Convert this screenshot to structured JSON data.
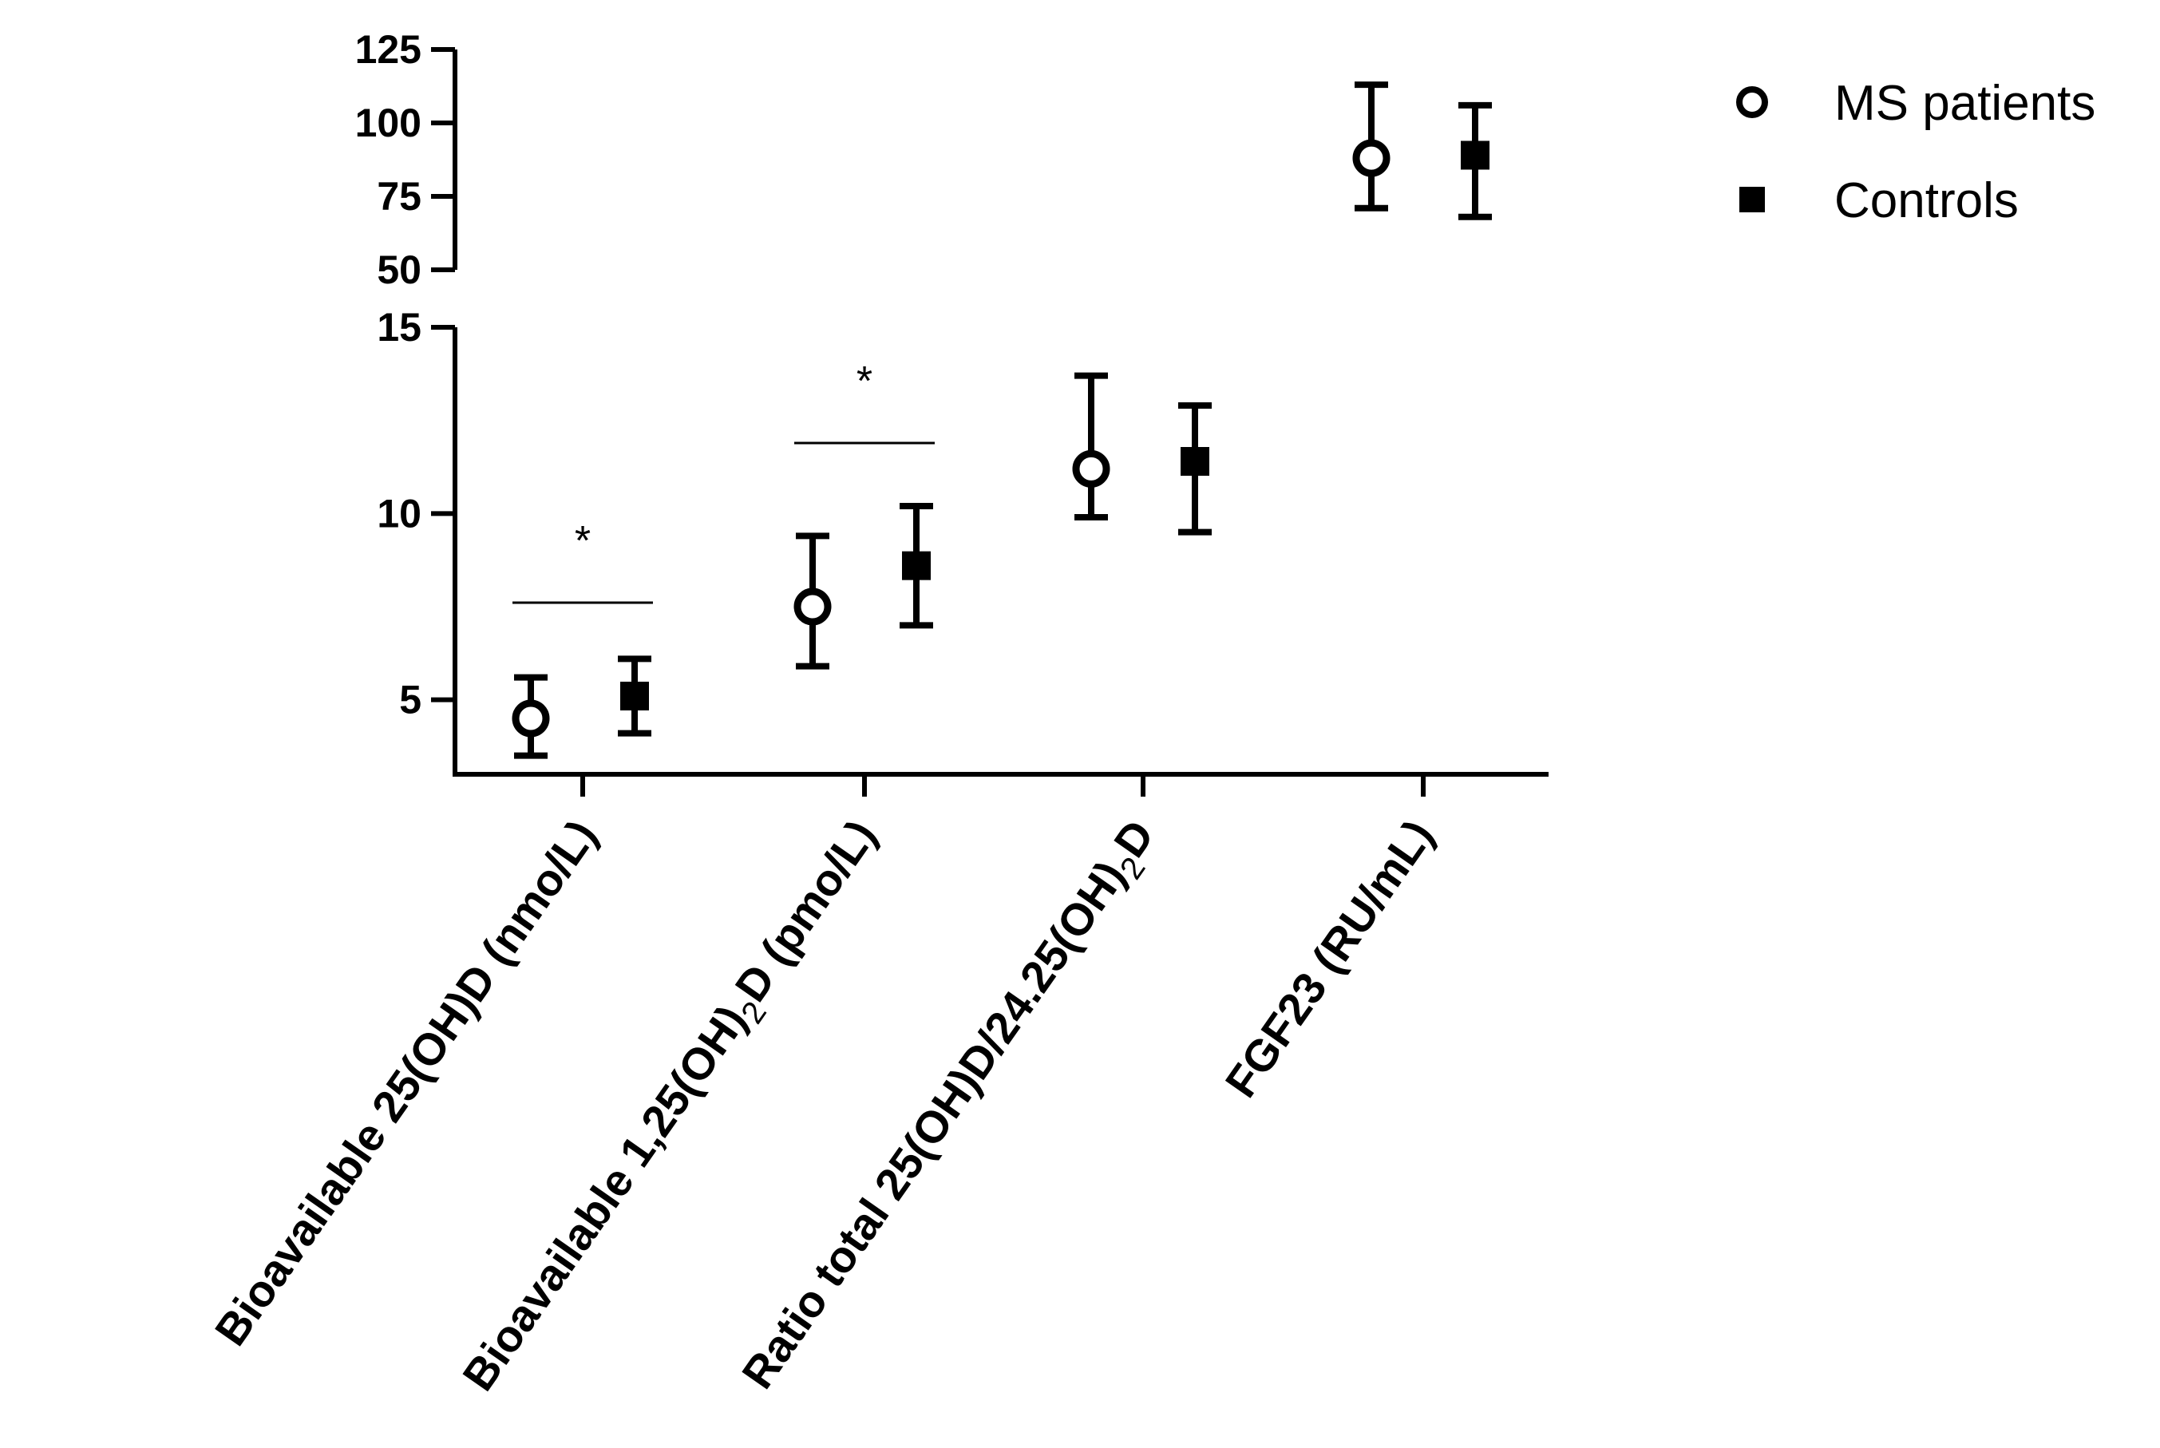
{
  "chart_data": {
    "type": "scatter",
    "title": "",
    "xlabel": "",
    "ylabel": "",
    "y_axis_broken": true,
    "y_segments": [
      {
        "range": [
          50,
          125
        ],
        "ticks": [
          "50",
          "75",
          "100",
          "125"
        ]
      },
      {
        "range": [
          3,
          15
        ],
        "ticks": [
          "5",
          "10",
          "15"
        ]
      }
    ],
    "categories": [
      {
        "parts": [
          {
            "t": "Bioavailable 25(OH)D (nmo/L)"
          }
        ]
      },
      {
        "parts": [
          {
            "t": "Bioavailable 1,25(OH)"
          },
          {
            "t": "2",
            "sub": true
          },
          {
            "t": "D (pmo/L)"
          }
        ]
      },
      {
        "parts": [
          {
            "t": "Ratio total 25(OH)D/24.25(OH)"
          },
          {
            "t": "2",
            "sub": true
          },
          {
            "t": "D"
          }
        ]
      },
      {
        "parts": [
          {
            "t": "FGF23 (RU/mL)"
          }
        ]
      }
    ],
    "series": [
      {
        "name": "MS patients",
        "marker": "open-circle",
        "values": [
          4.5,
          7.5,
          11.2,
          88
        ],
        "err_low": [
          3.5,
          5.9,
          9.9,
          71
        ],
        "err_high": [
          5.6,
          9.4,
          13.7,
          113
        ]
      },
      {
        "name": "Controls",
        "marker": "filled-square",
        "values": [
          5.1,
          8.6,
          11.4,
          89
        ],
        "err_low": [
          4.1,
          7.0,
          9.5,
          68
        ],
        "err_high": [
          6.1,
          10.2,
          12.9,
          106
        ]
      }
    ],
    "significance": [
      {
        "category_index": 0,
        "label": "*"
      },
      {
        "category_index": 1,
        "label": "*"
      }
    ],
    "legend_position": "top-right",
    "grid": false
  }
}
